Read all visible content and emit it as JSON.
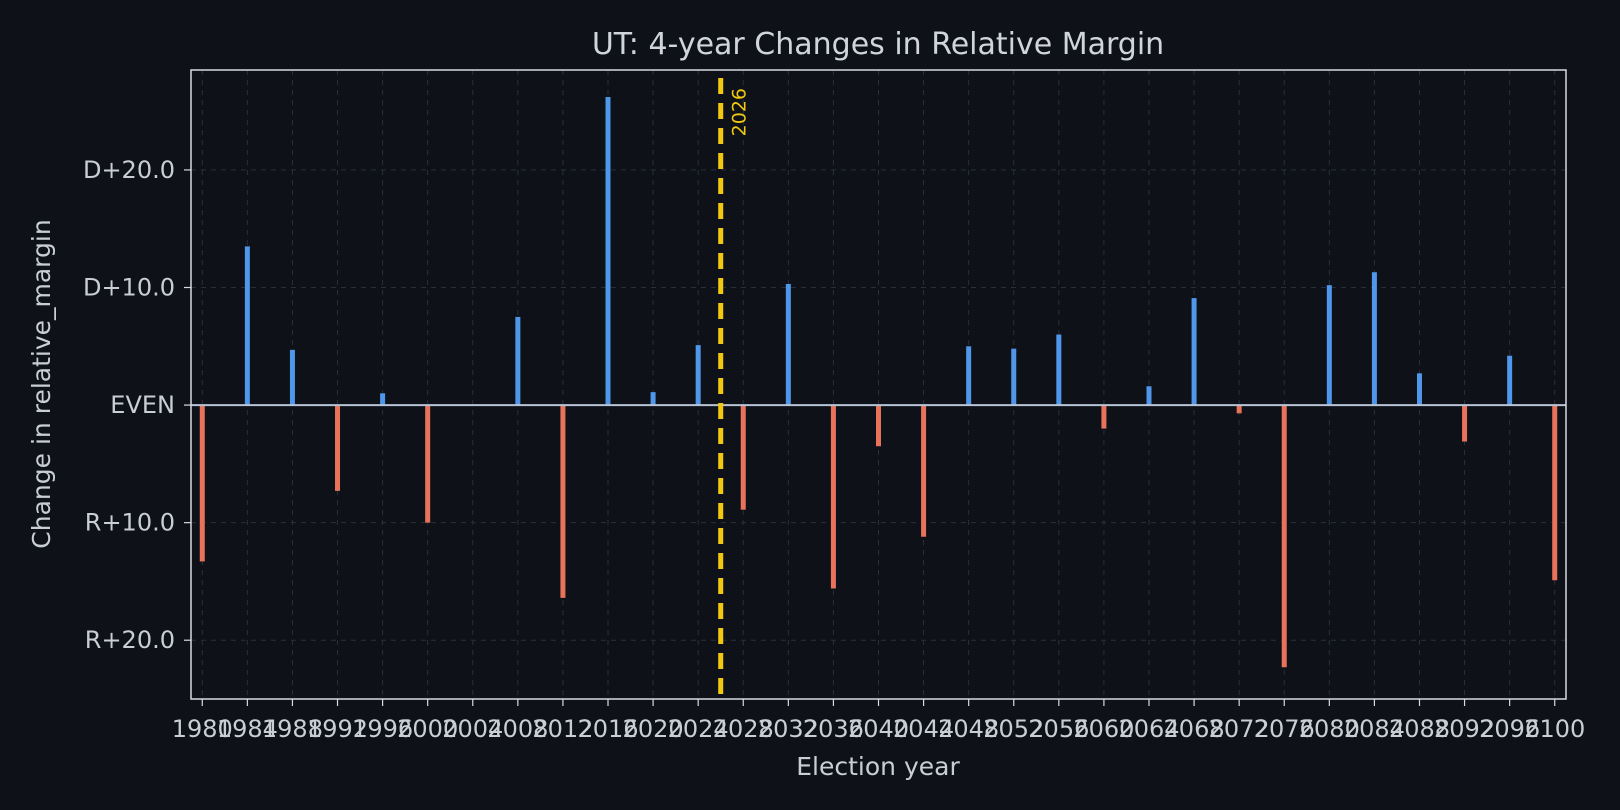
{
  "chart_data": {
    "type": "bar",
    "title": "UT: 4-year Changes in Relative Margin",
    "xlabel": "Election year",
    "ylabel": "Change in relative_margin",
    "x": [
      1980,
      1984,
      1988,
      1992,
      1996,
      2000,
      2004,
      2008,
      2012,
      2016,
      2020,
      2024,
      2028,
      2032,
      2036,
      2040,
      2044,
      2048,
      2052,
      2056,
      2060,
      2064,
      2068,
      2072,
      2076,
      2080,
      2084,
      2088,
      2092,
      2096,
      2100
    ],
    "values": [
      -13.3,
      13.5,
      4.7,
      -7.3,
      1.0,
      -10.0,
      0.0,
      7.5,
      -16.4,
      26.2,
      1.1,
      5.1,
      -8.9,
      10.3,
      -15.6,
      -3.5,
      -11.2,
      5.0,
      4.8,
      6.0,
      -2.0,
      1.6,
      9.1,
      -0.7,
      -22.3,
      10.2,
      11.3,
      2.7,
      -3.1,
      4.2,
      -14.9
    ],
    "xlim": [
      1979,
      2101
    ],
    "ylim": [
      -25,
      28.5
    ],
    "yticks": [
      {
        "value": 20,
        "label": "D+20.0"
      },
      {
        "value": 10,
        "label": "D+10.0"
      },
      {
        "value": 0,
        "label": "EVEN"
      },
      {
        "value": -10,
        "label": "R+10.0"
      },
      {
        "value": -20,
        "label": "R+20.0"
      }
    ],
    "xticks": [
      "1980",
      "1984",
      "1988",
      "1992",
      "1996",
      "2000",
      "2004",
      "2008",
      "2012",
      "2016",
      "2020",
      "2024",
      "2028",
      "2032",
      "2036",
      "2040",
      "2044",
      "2048",
      "2052",
      "2056",
      "2060",
      "2064",
      "2068",
      "2072",
      "2076",
      "2080",
      "2084",
      "2088",
      "2092",
      "2096",
      "2100"
    ],
    "marker": {
      "x": 2026,
      "label": "2026",
      "color": "#f2c811"
    },
    "colors": {
      "positive": "#4e97ea",
      "negative": "#e8735a",
      "zero_line": "#b8c4d6",
      "background": "#0e1117"
    },
    "grid": true
  }
}
